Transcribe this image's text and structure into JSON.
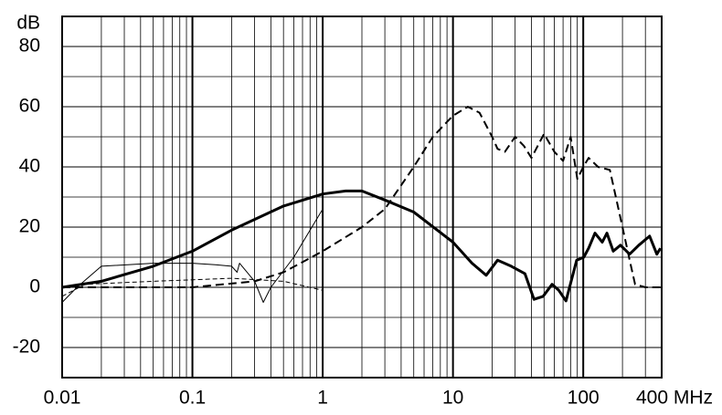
{
  "chart_data": {
    "type": "line",
    "ylabel": "dB",
    "xscale": "log",
    "xlim": [
      0.01,
      400
    ],
    "ylim": [
      -30,
      90
    ],
    "xticks": [
      0.01,
      0.1,
      1,
      10,
      100,
      {
        "value": 400,
        "label": "400 MHz"
      }
    ],
    "yticks": [
      -20,
      0,
      20,
      40,
      60,
      80
    ],
    "grid": true,
    "grid_x": [
      0.02,
      0.03,
      0.04,
      0.05,
      0.06,
      0.07,
      0.08,
      0.09,
      0.2,
      0.3,
      0.4,
      0.5,
      0.6,
      0.7,
      0.8,
      0.9,
      2,
      3,
      4,
      5,
      6,
      7,
      8,
      9,
      20,
      30,
      40,
      50,
      60,
      70,
      80,
      90,
      200,
      300
    ],
    "grid_y": [
      -10,
      10,
      30,
      50,
      70
    ],
    "series": [
      {
        "color": "#000000",
        "width": 3,
        "dash": false,
        "x": [
          0.01,
          0.02,
          0.05,
          0.1,
          0.2,
          0.5,
          1,
          1.5,
          2,
          3,
          5,
          10,
          14,
          18,
          22,
          28,
          35.7,
          41.9,
          49.2,
          57.7,
          64.9,
          73.7,
          89,
          101,
          110,
          123,
          140,
          152,
          170,
          193,
          227,
          267,
          323,
          367,
          392
        ],
        "values": [
          0,
          2,
          7,
          12,
          19,
          27,
          31,
          32,
          32,
          29,
          25,
          15,
          8,
          4,
          9,
          7,
          4.5,
          -4,
          -3,
          1,
          -1,
          -4.5,
          9,
          10,
          13,
          18,
          15,
          18,
          12,
          14,
          11,
          14,
          17,
          11,
          13
        ]
      },
      {
        "color": "#000000",
        "width": 2,
        "dash": true,
        "x": [
          0.01,
          0.1,
          0.3,
          0.5,
          1,
          2,
          3,
          5,
          7,
          10,
          13,
          16,
          20,
          22,
          25,
          30,
          35,
          40,
          50,
          60,
          70,
          80,
          90,
          100,
          110,
          130,
          160,
          200,
          230,
          250,
          300,
          400
        ],
        "values": [
          0,
          0,
          2,
          5,
          12,
          20,
          26,
          40,
          50,
          57,
          60,
          58,
          50,
          46,
          45,
          50,
          47,
          43,
          51,
          45,
          42,
          50,
          36,
          40,
          43,
          40,
          39,
          20,
          8,
          1,
          0,
          0
        ]
      },
      {
        "color": "#000000",
        "width": 1,
        "dash": false,
        "x": [
          0.01,
          0.013,
          0.02,
          0.05,
          0.1,
          0.15,
          0.2,
          0.22,
          0.23,
          0.3,
          0.35,
          0.4,
          0.6,
          1
        ],
        "values": [
          -5,
          0,
          7,
          8,
          8,
          7.5,
          7,
          5,
          8,
          2,
          -5,
          0,
          10,
          26
        ]
      },
      {
        "color": "#000000",
        "width": 1,
        "dash": true,
        "x": [
          0.01,
          0.015,
          0.05,
          0.2,
          0.5,
          1
        ],
        "values": [
          -3,
          1,
          2,
          3,
          2,
          -1
        ]
      }
    ]
  }
}
